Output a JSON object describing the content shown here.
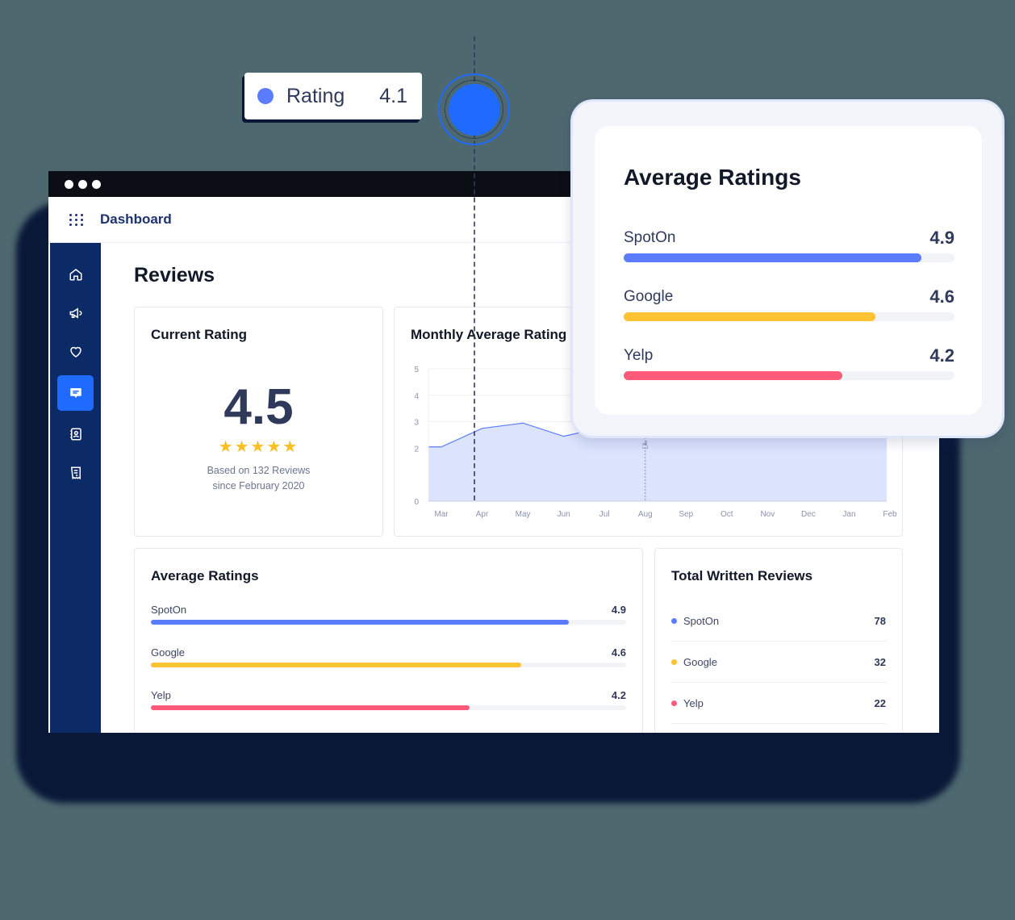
{
  "window": {
    "title": "Dashboard",
    "page_title": "Reviews"
  },
  "sidebar": {
    "items": [
      {
        "name": "home",
        "icon": "home-icon",
        "active": false
      },
      {
        "name": "marketing",
        "icon": "megaphone-icon",
        "active": false
      },
      {
        "name": "loyalty",
        "icon": "heart-icon",
        "active": false
      },
      {
        "name": "reviews",
        "icon": "chat-icon",
        "active": true
      },
      {
        "name": "contacts",
        "icon": "contact-book-icon",
        "active": false
      },
      {
        "name": "reports",
        "icon": "receipt-icon",
        "active": false
      }
    ]
  },
  "current_rating": {
    "title": "Current Rating",
    "value": "4.5",
    "stars": "★★★★★",
    "based_line1": "Based on 132 Reviews",
    "based_line2": "since February 2020"
  },
  "monthly": {
    "title": "Monthly Average Rating"
  },
  "chart_data": {
    "type": "area",
    "title": "Monthly Average Rating",
    "categories": [
      "Mar",
      "Apr",
      "May",
      "Jun",
      "Jul",
      "Aug",
      "Sep",
      "Oct",
      "Nov",
      "Dec",
      "Jan",
      "Feb"
    ],
    "yticks": [
      0,
      2,
      3,
      4,
      5
    ],
    "ylim": [
      0,
      5
    ],
    "series": [
      {
        "name": "Rating",
        "values": [
          2.05,
          2.75,
          2.95,
          2.45,
          2.8,
          null,
          null,
          2.5,
          null,
          null,
          null,
          null
        ]
      }
    ],
    "annotation": {
      "label": "Rating",
      "value": "4.1"
    },
    "color": "#5b7cff",
    "fill": "#dbe3fd"
  },
  "tooltip": {
    "label": "Rating",
    "value": "4.1",
    "color": "#5b7cff"
  },
  "average_ratings": {
    "title": "Average Ratings",
    "rows": [
      {
        "label": "SpotOn",
        "value": "4.9",
        "pct": 88,
        "color": "#5b7cff"
      },
      {
        "label": "Google",
        "value": "4.6",
        "pct": 78,
        "color": "#fec232"
      },
      {
        "label": "Yelp",
        "value": "4.2",
        "pct": 67,
        "color": "#ff5a7a"
      }
    ]
  },
  "popout": {
    "title": "Average Ratings",
    "rows": [
      {
        "label": "SpotOn",
        "value": "4.9",
        "pct": 90,
        "color": "#5b7cff"
      },
      {
        "label": "Google",
        "value": "4.6",
        "pct": 76,
        "color": "#fec232"
      },
      {
        "label": "Yelp",
        "value": "4.2",
        "pct": 66,
        "color": "#ff5a7a"
      }
    ]
  },
  "total_written": {
    "title": "Total Written Reviews",
    "rows": [
      {
        "label": "SpotOn",
        "value": "78",
        "color": "#5b7cff"
      },
      {
        "label": "Google",
        "value": "32",
        "color": "#fec232"
      },
      {
        "label": "Yelp",
        "value": "22",
        "color": "#ff5a7a"
      }
    ]
  }
}
